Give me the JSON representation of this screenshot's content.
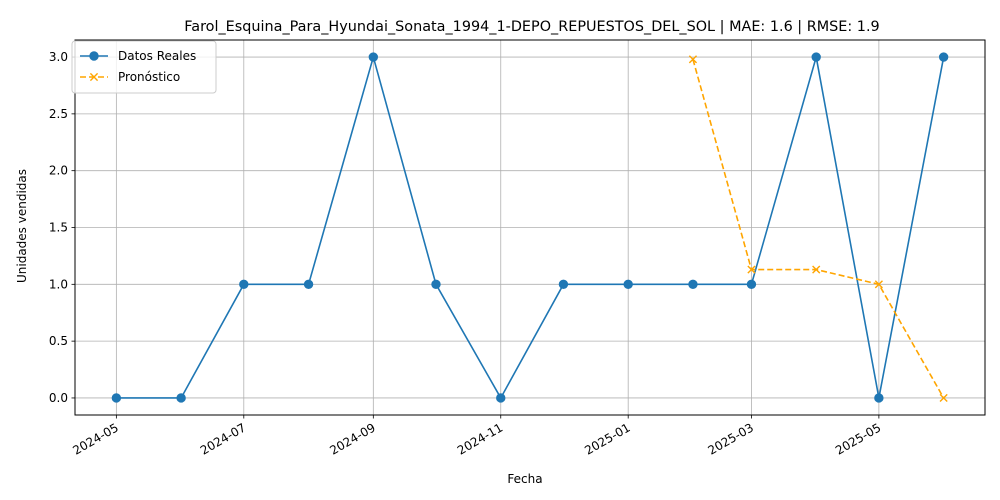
{
  "chart_data": {
    "type": "line",
    "title": "Farol_Esquina_Para_Hyundai_Sonata_1994_1-DEPO_REPUESTOS_DEL_SOL | MAE: 1.6 | RMSE: 1.9",
    "xlabel": "Fecha",
    "ylabel": "Unidades vendidas",
    "ylim": [
      -0.15,
      3.15
    ],
    "yticks": [
      "0.0",
      "0.5",
      "1.0",
      "1.5",
      "2.0",
      "2.5",
      "3.0"
    ],
    "xticks": [
      "2024-05",
      "2024-07",
      "2024-09",
      "2024-11",
      "2025-01",
      "2025-03",
      "2025-05"
    ],
    "grid": true,
    "legend_position": "top-left",
    "series": [
      {
        "name": "Datos Reales",
        "color": "#1f77b4",
        "style": "solid",
        "marker": "circle",
        "x": [
          "2024-05-01",
          "2024-06-01",
          "2024-07-01",
          "2024-08-01",
          "2024-09-01",
          "2024-10-01",
          "2024-11-01",
          "2024-12-01",
          "2025-01-01",
          "2025-02-01",
          "2025-03-01",
          "2025-04-01",
          "2025-05-01",
          "2025-06-01"
        ],
        "values": [
          0,
          0,
          1,
          1,
          3,
          1,
          0,
          1,
          1,
          1,
          1,
          3,
          0,
          3
        ]
      },
      {
        "name": "Pronóstico",
        "color": "#ffa500",
        "style": "dashed",
        "marker": "x",
        "x": [
          "2025-02-01",
          "2025-03-01",
          "2025-04-01",
          "2025-05-01",
          "2025-06-01"
        ],
        "values": [
          2.98,
          1.13,
          1.13,
          1.0,
          0.0
        ]
      }
    ]
  }
}
